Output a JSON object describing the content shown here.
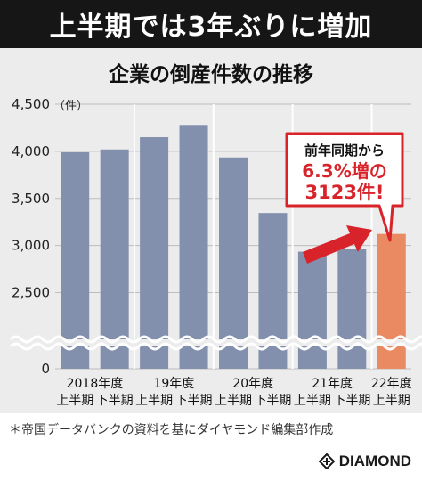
{
  "header": {
    "title": "上半期では3年ぶりに増加"
  },
  "chart_data": {
    "type": "bar",
    "title": "企業の倒産件数の推移",
    "ylabel": "（件）",
    "ylim": [
      2250,
      4500
    ],
    "axis_break": true,
    "yticks": [
      {
        "value": 4500,
        "label": "4,500"
      },
      {
        "value": 4000,
        "label": "4,000"
      },
      {
        "value": 3500,
        "label": "3,500"
      },
      {
        "value": 3000,
        "label": "3,000"
      },
      {
        "value": 2500,
        "label": "2,500"
      },
      {
        "value": 0,
        "label": "0"
      }
    ],
    "categories": [
      {
        "year": "2018年度",
        "half": "上半期"
      },
      {
        "year": "",
        "half": "下半期"
      },
      {
        "year": "19年度",
        "half": "上半期"
      },
      {
        "year": "",
        "half": "下半期"
      },
      {
        "year": "20年度",
        "half": "上半期"
      },
      {
        "year": "",
        "half": "下半期"
      },
      {
        "year": "21年度",
        "half": "上半期"
      },
      {
        "year": "",
        "half": "下半期"
      },
      {
        "year": "22年度",
        "half": "上半期"
      }
    ],
    "values": [
      3990,
      4020,
      4150,
      4280,
      3935,
      3345,
      2935,
      2965,
      3123
    ],
    "bar_color": "#8390ad",
    "highlight_color": "#ea8a63",
    "highlight_index": 8,
    "grid": true,
    "callout": {
      "line1": "前年同期から",
      "line2": "6.3%増の",
      "line3": "3123件!",
      "border_color": "#d8232a",
      "text_color": "#d8232a"
    }
  },
  "footer": {
    "source": "＊帝国データバンクの資料を基にダイヤモンド編集部作成",
    "logo_text": "DIAMOND"
  }
}
